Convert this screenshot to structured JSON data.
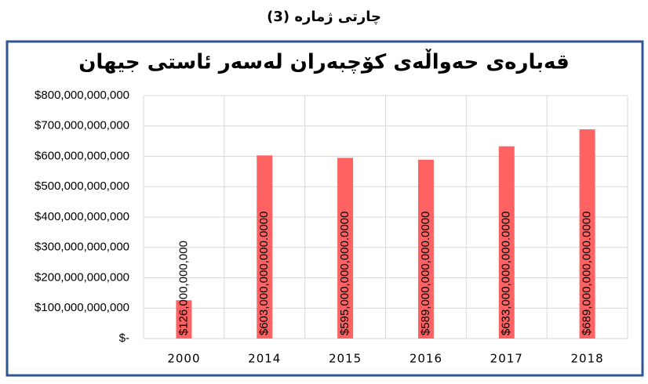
{
  "heading": "چارتی ژمارە (3)",
  "chart_data": {
    "type": "bar",
    "title": "قەبارەی حەواڵەی کۆچبەران لەسەر ئاستی جیهان",
    "categories": [
      "2000",
      "2014",
      "2015",
      "2016",
      "2017",
      "2018"
    ],
    "values": [
      126000000000,
      603000000000,
      595000000000,
      589000000000,
      633000000000,
      689000000000
    ],
    "value_labels": [
      "$126,000,000,000",
      "$603,000,000,000.0000",
      "$595,000,000,000.0000",
      "$589,000,000,000.0000",
      "$633,000,000,000.0000",
      "$689,000,000,000.0000"
    ],
    "color": "#ff6262",
    "ylim": [
      0,
      800000000000
    ],
    "yticks": [
      {
        "value": 0,
        "label": "$-"
      },
      {
        "value": 100000000000,
        "label": "$100,000,000,000"
      },
      {
        "value": 200000000000,
        "label": "$200,000,000,000"
      },
      {
        "value": 300000000000,
        "label": "$300,000,000,000"
      },
      {
        "value": 400000000000,
        "label": "$400,000,000,000"
      },
      {
        "value": 500000000000,
        "label": "$500,000,000,000"
      },
      {
        "value": 600000000000,
        "label": "$600,000,000,000"
      },
      {
        "value": 700000000000,
        "label": "$700,000,000,000"
      },
      {
        "value": 800000000000,
        "label": "$800,000,000,000"
      }
    ],
    "grid": true
  }
}
